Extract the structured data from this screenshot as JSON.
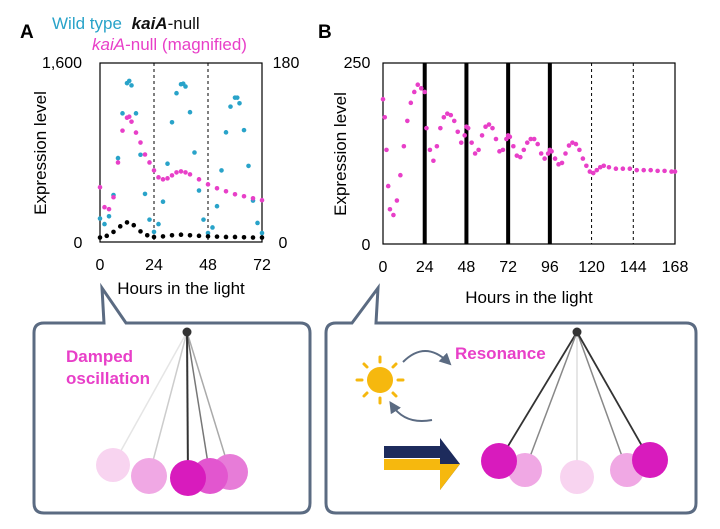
{
  "panels": {
    "a": {
      "letter": "A"
    },
    "b": {
      "letter": "B"
    }
  },
  "legend_a": {
    "wild_type": "Wild type",
    "kaia_null_italic": "kaiA",
    "kaia_null_suffix": "-null",
    "magnified_italic": "kaiA",
    "magnified_suffix": "-null (magnified)"
  },
  "colors": {
    "wild_type": "#29a3c9",
    "kaia_null": "#000000",
    "magnified": "#e83fc8",
    "box_border": "#5b6b82",
    "label_magenta": "#e83fc8",
    "sun": "#f6b80e",
    "moon": "#1d2b5c",
    "arrow_navy": "#1d2b5c",
    "arrow_gold": "#f6b80e"
  },
  "chart_data": [
    {
      "panel": "A",
      "type": "scatter",
      "xlabel": "Hours in the light",
      "ylabel": "Expression level",
      "xlim": [
        0,
        72
      ],
      "x_ticks": [
        "0",
        "24",
        "48",
        "72"
      ],
      "ylim_left": [
        0,
        1600
      ],
      "ylim_left_labels": [
        "0",
        "1,600"
      ],
      "ylim_right": [
        0,
        180
      ],
      "ylim_right_labels": [
        "0",
        "180"
      ],
      "dashed_lines_x": [
        24,
        48
      ],
      "series": [
        {
          "name": "Wild type",
          "axis": "left",
          "color": "#29a3c9",
          "x": [
            0,
            2,
            4,
            6,
            8,
            10,
            12,
            13,
            14,
            16,
            18,
            20,
            22,
            24,
            26,
            28,
            30,
            32,
            34,
            36,
            37,
            38,
            40,
            42,
            44,
            46,
            48,
            50,
            52,
            54,
            56,
            58,
            60,
            61,
            62,
            64,
            66,
            68,
            70,
            72
          ],
          "y": [
            210,
            160,
            230,
            420,
            750,
            1150,
            1420,
            1440,
            1400,
            1150,
            780,
            430,
            200,
            90,
            160,
            360,
            700,
            1070,
            1330,
            1410,
            1415,
            1390,
            1160,
            800,
            460,
            200,
            80,
            130,
            320,
            640,
            980,
            1210,
            1290,
            1290,
            1240,
            1000,
            680,
            370,
            170,
            80
          ]
        },
        {
          "name": "kaiA-null",
          "axis": "left",
          "color": "#000000",
          "x": [
            0,
            3,
            6,
            9,
            12,
            15,
            18,
            21,
            24,
            28,
            32,
            36,
            40,
            44,
            48,
            52,
            56,
            60,
            64,
            68,
            72
          ],
          "y": [
            40,
            55,
            90,
            140,
            175,
            150,
            95,
            60,
            45,
            50,
            60,
            65,
            60,
            55,
            50,
            48,
            45,
            45,
            42,
            40,
            40
          ]
        },
        {
          "name": "kaiA-null (magnified)",
          "axis": "right",
          "color": "#e83fc8",
          "x": [
            0,
            2,
            4,
            6,
            8,
            10,
            12,
            13,
            14,
            16,
            18,
            20,
            22,
            24,
            26,
            28,
            30,
            32,
            34,
            36,
            38,
            40,
            44,
            48,
            52,
            56,
            60,
            64,
            68,
            72
          ],
          "y": [
            55,
            35,
            33,
            45,
            80,
            112,
            125,
            126,
            121,
            110,
            100,
            88,
            80,
            72,
            65,
            63,
            64,
            67,
            70,
            71,
            70,
            68,
            63,
            58,
            54,
            51,
            48,
            46,
            44,
            42
          ]
        }
      ]
    },
    {
      "panel": "B",
      "type": "scatter",
      "xlabel": "Hours in the light",
      "ylabel": "Expression level",
      "xlim": [
        0,
        168
      ],
      "x_ticks": [
        "0",
        "24",
        "48",
        "72",
        "96",
        "120",
        "144",
        "168"
      ],
      "ylim": [
        0,
        250
      ],
      "ylim_labels": [
        "0",
        "250"
      ],
      "solid_lines_x": [
        24,
        48,
        72,
        96
      ],
      "dashed_lines_x": [
        120,
        144
      ],
      "series": [
        {
          "name": "",
          "color": "#e83fc8",
          "x": [
            0,
            1,
            2,
            3,
            4,
            6,
            8,
            10,
            12,
            14,
            16,
            18,
            20,
            22,
            24,
            25,
            27,
            29,
            31,
            33,
            35,
            37,
            39,
            41,
            43,
            45,
            47,
            48,
            49,
            51,
            53,
            55,
            57,
            59,
            61,
            63,
            65,
            67,
            69,
            71,
            72,
            73,
            75,
            77,
            79,
            81,
            83,
            85,
            87,
            89,
            91,
            93,
            95,
            96,
            97,
            99,
            101,
            103,
            105,
            107,
            109,
            111,
            113,
            115,
            117,
            119,
            121,
            123,
            125,
            127,
            130,
            134,
            138,
            142,
            146,
            150,
            154,
            158,
            162,
            166,
            168
          ],
          "y": [
            200,
            175,
            130,
            80,
            48,
            40,
            60,
            95,
            135,
            170,
            195,
            210,
            220,
            215,
            210,
            160,
            130,
            115,
            135,
            160,
            175,
            180,
            178,
            170,
            155,
            140,
            150,
            162,
            160,
            140,
            125,
            130,
            150,
            162,
            165,
            160,
            145,
            128,
            130,
            145,
            150,
            148,
            135,
            122,
            120,
            130,
            140,
            145,
            145,
            138,
            125,
            118,
            125,
            130,
            128,
            118,
            110,
            112,
            125,
            136,
            140,
            138,
            130,
            118,
            108,
            100,
            98,
            102,
            106,
            108,
            106,
            104,
            104,
            104,
            102,
            102,
            102,
            101,
            101,
            100,
            100
          ]
        }
      ]
    }
  ],
  "bottom_a": {
    "label_line1": "Damped",
    "label_line2": "oscillation"
  },
  "bottom_b": {
    "label": "Resonance"
  }
}
